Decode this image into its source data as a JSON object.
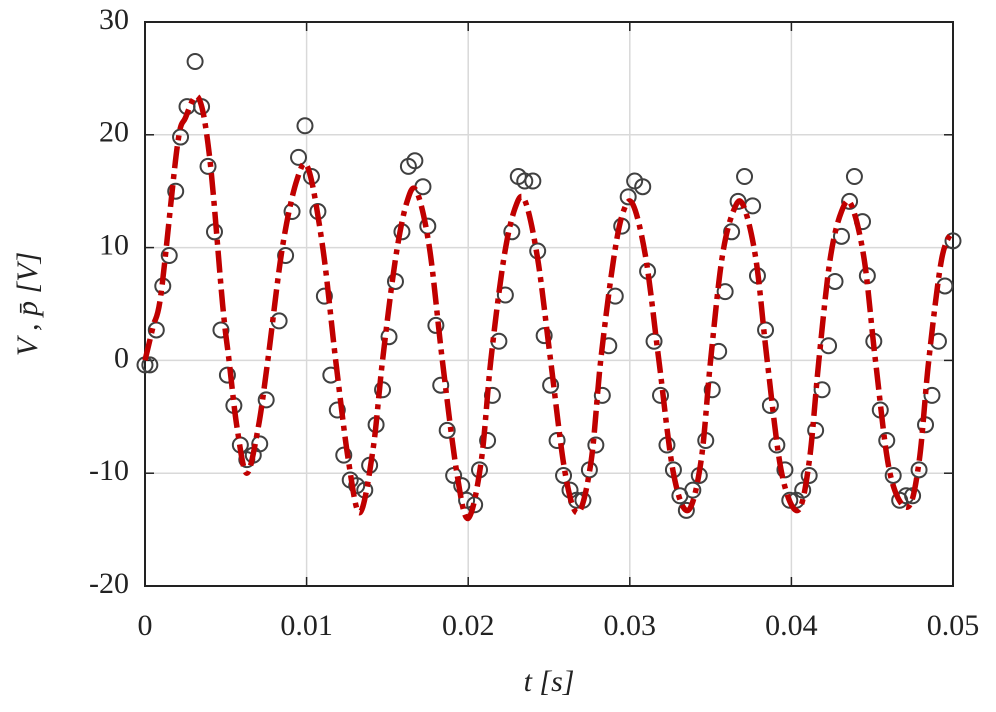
{
  "chart_data": {
    "type": "scatter",
    "xlabel": "t [s]",
    "ylabel": "V , p̄ [V]",
    "xlim": [
      0,
      0.05
    ],
    "ylim": [
      -20,
      30
    ],
    "xticks": [
      0,
      0.01,
      0.02,
      0.03,
      0.04,
      0.05
    ],
    "yticks": [
      -20,
      -10,
      0,
      10,
      20,
      30
    ],
    "grid": true,
    "series": [
      {
        "type": "scatter",
        "color": "#404040",
        "x": [
          0,
          0.0003,
          0.0007,
          0.0011,
          0.0015,
          0.0019,
          0.0022,
          0.0026,
          0.0031,
          0.0035,
          0.0039,
          0.0043,
          0.0047,
          0.0051,
          0.0055,
          0.0059,
          0.0063,
          0.0067,
          0.0071,
          0.0075,
          0.0083,
          0.0087,
          0.0091,
          0.0095,
          0.0099,
          0.0103,
          0.0107,
          0.0111,
          0.0115,
          0.0119,
          0.0123,
          0.0127,
          0.0131,
          0.0136,
          0.0139,
          0.0143,
          0.0147,
          0.0151,
          0.0155,
          0.0159,
          0.0163,
          0.0167,
          0.0172,
          0.0175,
          0.018,
          0.0183,
          0.0187,
          0.0191,
          0.0196,
          0.0199,
          0.0204,
          0.0207,
          0.0212,
          0.0215,
          0.0219,
          0.0223,
          0.0227,
          0.0231,
          0.0235,
          0.024,
          0.0243,
          0.0247,
          0.0251,
          0.0255,
          0.0259,
          0.0263,
          0.0267,
          0.0271,
          0.0275,
          0.0279,
          0.0283,
          0.0287,
          0.0291,
          0.0295,
          0.0299,
          0.0303,
          0.0308,
          0.0311,
          0.0315,
          0.0319,
          0.0323,
          0.0327,
          0.0331,
          0.0335,
          0.0339,
          0.0343,
          0.0347,
          0.0351,
          0.0355,
          0.0359,
          0.0363,
          0.0367,
          0.0371,
          0.0376,
          0.0379,
          0.0384,
          0.0387,
          0.0391,
          0.0396,
          0.0399,
          0.0403,
          0.0407,
          0.0411,
          0.0415,
          0.0419,
          0.0423,
          0.0427,
          0.0431,
          0.0436,
          0.0439,
          0.0444,
          0.0447,
          0.0451,
          0.0455,
          0.0459,
          0.0463,
          0.0467,
          0.0471,
          0.0475,
          0.0479,
          0.0483,
          0.0487,
          0.0491,
          0.0495,
          0.05
        ],
        "values": [
          -0.4,
          -0.4,
          2.7,
          6.6,
          9.3,
          15.0,
          19.8,
          22.5,
          26.5,
          22.5,
          17.2,
          11.4,
          2.7,
          -1.3,
          -4.0,
          -7.5,
          -8.8,
          -8.4,
          -7.4,
          -3.5,
          3.5,
          9.3,
          13.2,
          18.0,
          20.8,
          16.3,
          13.2,
          5.7,
          -1.3,
          -4.4,
          -8.4,
          -10.6,
          -11.1,
          -11.5,
          -9.3,
          -5.7,
          -2.6,
          2.1,
          7.0,
          11.4,
          17.2,
          17.7,
          15.4,
          11.9,
          3.1,
          -2.2,
          -6.2,
          -10.2,
          -11.1,
          -12.4,
          -12.8,
          -9.7,
          -7.1,
          -3.1,
          1.7,
          5.8,
          11.4,
          16.3,
          15.9,
          15.9,
          9.7,
          2.2,
          -2.2,
          -7.1,
          -10.2,
          -11.5,
          -12.4,
          -12.4,
          -9.7,
          -7.5,
          -3.1,
          1.3,
          5.7,
          11.9,
          14.5,
          15.9,
          15.4,
          7.9,
          1.7,
          -3.1,
          -7.5,
          -9.7,
          -12.0,
          -13.3,
          -11.5,
          -10.2,
          -7.1,
          -2.6,
          0.8,
          6.1,
          11.4,
          14.1,
          16.3,
          13.7,
          7.5,
          2.7,
          -4.0,
          -7.5,
          -9.7,
          -12.4,
          -12.4,
          -11.5,
          -10.2,
          -6.2,
          -2.6,
          1.3,
          7.0,
          11.0,
          14.1,
          16.3,
          12.3,
          7.5,
          1.7,
          -4.4,
          -7.1,
          -10.2,
          -12.4,
          -12.0,
          -12.0,
          -9.7,
          -5.7,
          -3.1,
          1.7,
          6.6,
          10.6
        ]
      },
      {
        "type": "line",
        "color": "#c00000",
        "x": [
          0,
          0.0005,
          0.001,
          0.002,
          0.0025,
          0.0033,
          0.004,
          0.0048,
          0.0052,
          0.0057,
          0.0063,
          0.007,
          0.0076,
          0.0085,
          0.0094,
          0.0101,
          0.011,
          0.0118,
          0.0126,
          0.0133,
          0.0141,
          0.0147,
          0.0155,
          0.0162,
          0.0168,
          0.0176,
          0.0184,
          0.0193,
          0.02,
          0.0208,
          0.0214,
          0.0222,
          0.0229,
          0.0235,
          0.0243,
          0.0251,
          0.026,
          0.0268,
          0.0276,
          0.0282,
          0.029,
          0.0296,
          0.0302,
          0.031,
          0.0318,
          0.0327,
          0.0336,
          0.0344,
          0.035,
          0.0357,
          0.0364,
          0.037,
          0.0378,
          0.0385,
          0.0394,
          0.0404,
          0.0411,
          0.0417,
          0.0424,
          0.0431,
          0.0437,
          0.0445,
          0.0452,
          0.0461,
          0.0472,
          0.0479,
          0.0485,
          0.0493,
          0.05
        ],
        "values": [
          0,
          3,
          6,
          19,
          21.5,
          23.3,
          18,
          5,
          0,
          -6,
          -10,
          -6,
          0,
          10,
          16,
          17,
          10,
          0,
          -9,
          -13.5,
          -8,
          0,
          9,
          14,
          15,
          10,
          0,
          -10,
          -14,
          -9,
          0,
          9,
          13.5,
          14.2,
          9,
          0,
          -10,
          -13.5,
          -9,
          0,
          9,
          13.2,
          13.8,
          9,
          0,
          -10,
          -13.3,
          -9,
          0,
          9,
          13.2,
          13.8,
          9,
          0,
          -10,
          -13.3,
          -9,
          0,
          9,
          13.2,
          13.8,
          9,
          0,
          -10,
          -13,
          -9,
          0,
          9,
          11.5
        ]
      }
    ]
  }
}
